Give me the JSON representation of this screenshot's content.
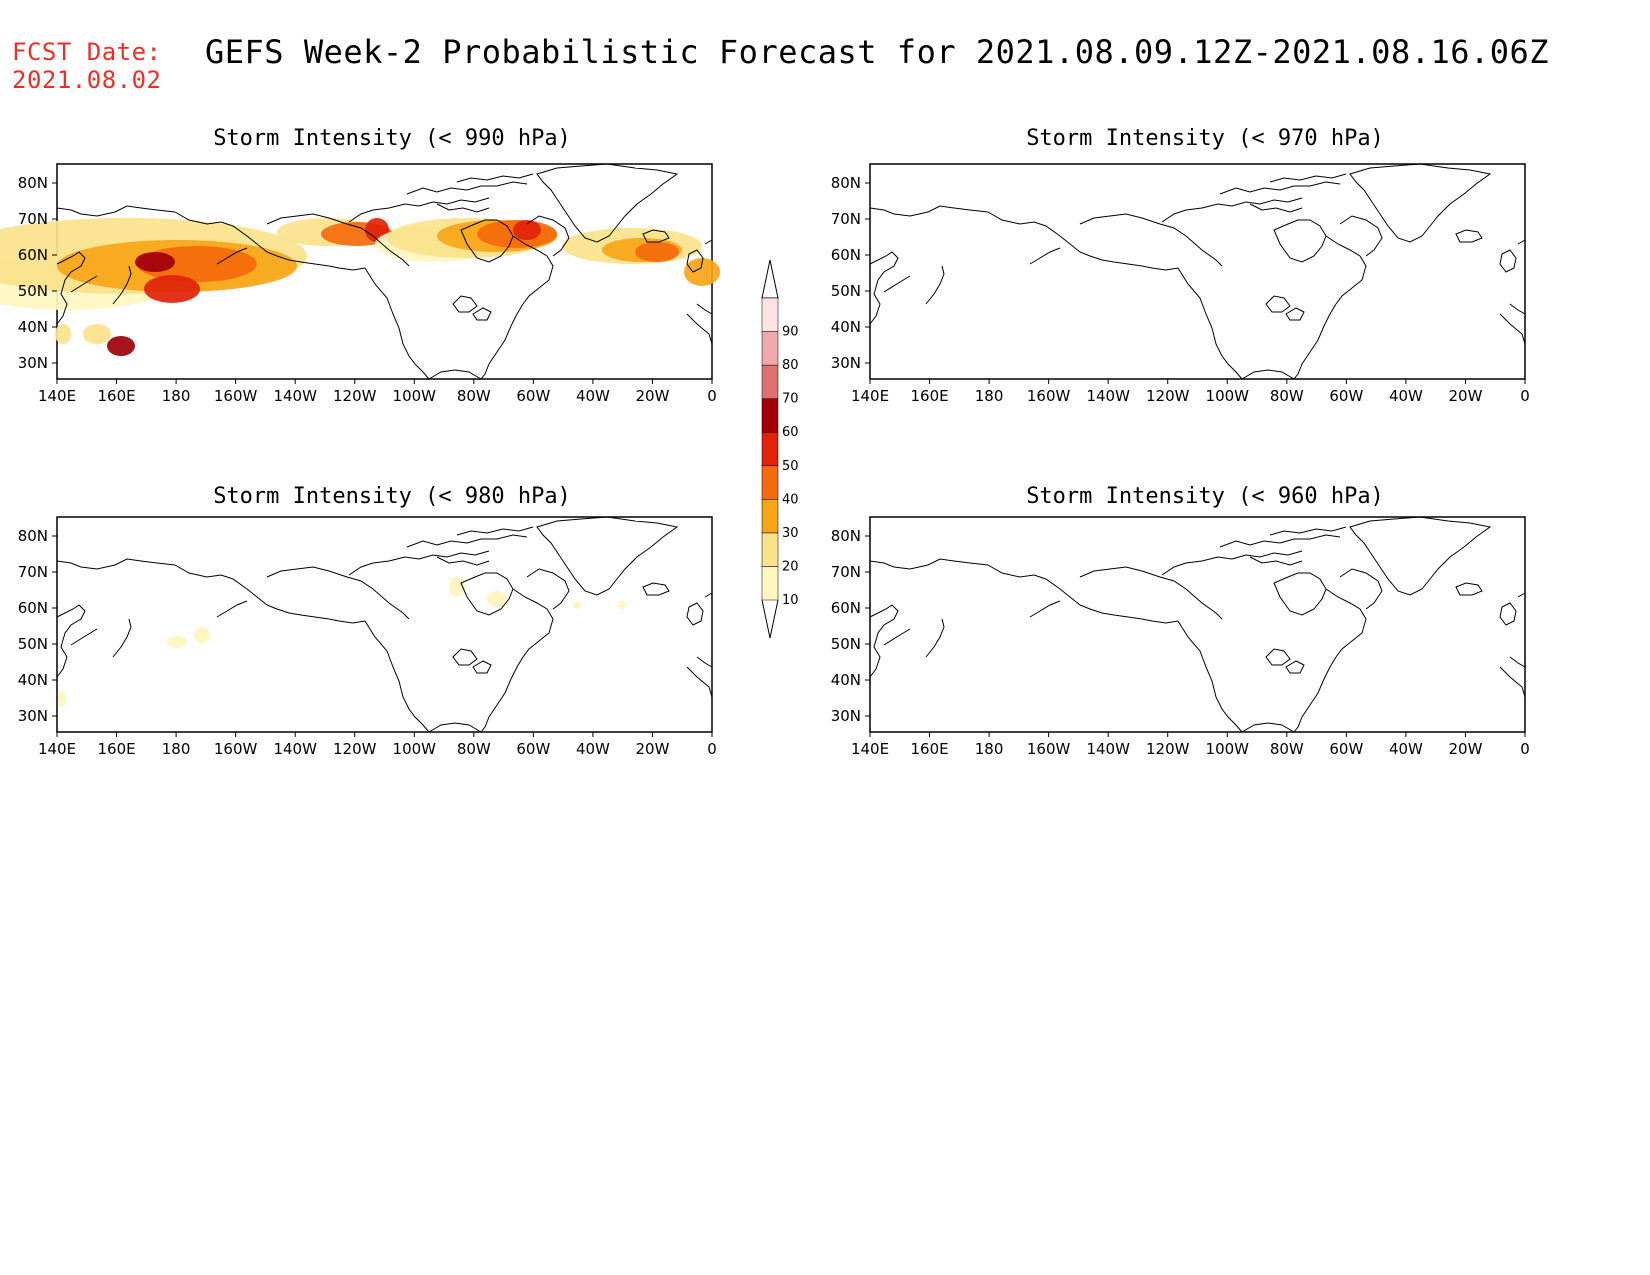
{
  "header": {
    "fcst_label": "FCST Date:",
    "fcst_date": "2021.08.02",
    "title": "GEFS Week-2 Probabilistic Forecast for 2021.08.09.12Z-2021.08.16.06Z"
  },
  "axes": {
    "lon_labels": [
      "140E",
      "160E",
      "180",
      "160W",
      "140W",
      "120W",
      "100W",
      "80W",
      "60W",
      "40W",
      "20W",
      "0"
    ],
    "lat_labels": [
      "80N",
      "70N",
      "60N",
      "50N",
      "40N",
      "30N"
    ],
    "lon_range": [
      "140E",
      "0"
    ],
    "lat_range": [
      "25N",
      "85N"
    ]
  },
  "panels": [
    {
      "id": "p990",
      "title": "Storm Intensity (< 990 hPa)",
      "has_shading": true
    },
    {
      "id": "p970",
      "title": "Storm Intensity (< 970 hPa)",
      "has_shading": false
    },
    {
      "id": "p980",
      "title": "Storm Intensity (< 980 hPa)",
      "has_shading": true
    },
    {
      "id": "p960",
      "title": "Storm Intensity (< 960 hPa)",
      "has_shading": false
    }
  ],
  "colorbar": {
    "levels": [
      "10",
      "20",
      "30",
      "40",
      "50",
      "60",
      "70",
      "80",
      "90"
    ],
    "colors": [
      "#fff6c0",
      "#fbe28a",
      "#f7a517",
      "#f46b0c",
      "#e0230a",
      "#a0000a",
      "#e07070",
      "#f3a8ae",
      "#fde2e4"
    ]
  },
  "colors": {
    "header_red": "#e8302a",
    "coastline": "#000000"
  }
}
